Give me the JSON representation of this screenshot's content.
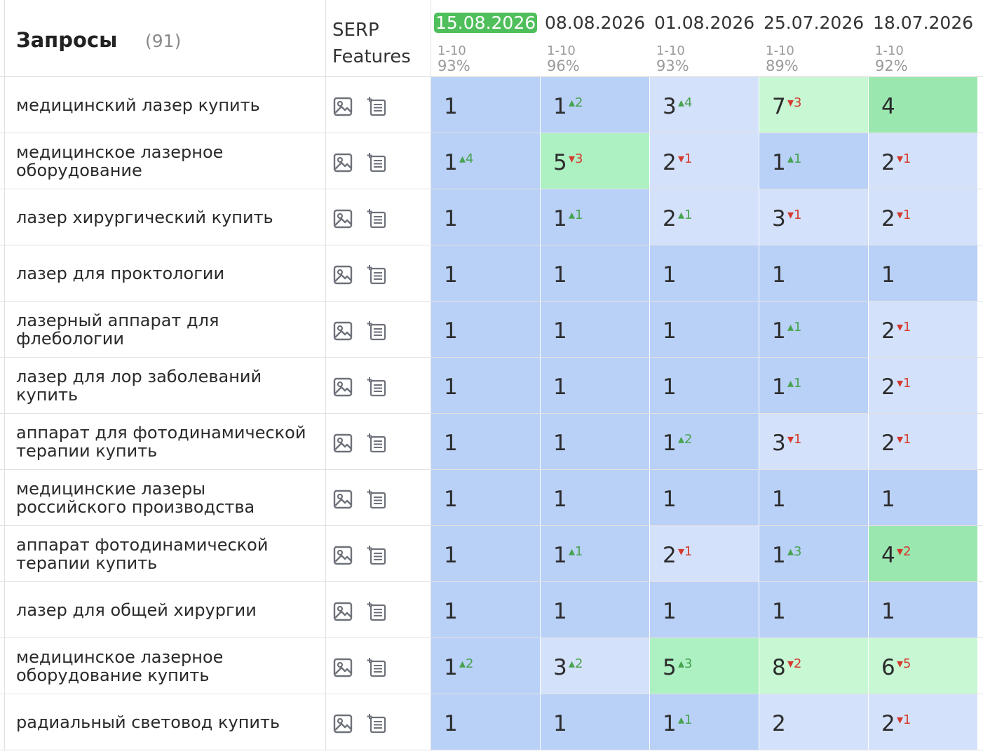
{
  "header": {
    "queries_label": "Запросы",
    "queries_count": "(91)",
    "serp_line1": "SERP",
    "serp_line2": "Features",
    "dates": [
      {
        "date": "15.08.2026",
        "range": "1-10",
        "pct": "93%",
        "active": true
      },
      {
        "date": "08.08.2026",
        "range": "1-10",
        "pct": "96%",
        "active": false
      },
      {
        "date": "01.08.2026",
        "range": "1-10",
        "pct": "93%",
        "active": false
      },
      {
        "date": "25.07.2026",
        "range": "1-10",
        "pct": "89%",
        "active": false
      },
      {
        "date": "18.07.2026",
        "range": "1-10",
        "pct": "92%",
        "active": false
      }
    ]
  },
  "icons": {
    "image": "image-icon",
    "list": "featured-snippet-icon"
  },
  "colors": {
    "blue": "#b9d0f7",
    "light": "#d4e1fb",
    "green": "#adf0c2",
    "light_green": "#c8f7d4",
    "bright_green": "#9ae7b0",
    "active_date": "#4fbf5b",
    "up": "#47a34f",
    "down": "#d33a2c"
  },
  "rows": [
    {
      "query": "медицинский лазер купить",
      "positions": [
        {
          "pos": "1",
          "delta": "",
          "dir": "",
          "bg": "blue"
        },
        {
          "pos": "1",
          "delta": "2",
          "dir": "up",
          "bg": "blue"
        },
        {
          "pos": "3",
          "delta": "4",
          "dir": "up",
          "bg": "light"
        },
        {
          "pos": "7",
          "delta": "3",
          "dir": "down",
          "bg": "lgreen"
        },
        {
          "pos": "4",
          "delta": "",
          "dir": "",
          "bg": "bgreen"
        }
      ]
    },
    {
      "query": "медицинское лазерное оборудование",
      "positions": [
        {
          "pos": "1",
          "delta": "4",
          "dir": "up",
          "bg": "blue"
        },
        {
          "pos": "5",
          "delta": "3",
          "dir": "down",
          "bg": "green"
        },
        {
          "pos": "2",
          "delta": "1",
          "dir": "down",
          "bg": "light"
        },
        {
          "pos": "1",
          "delta": "1",
          "dir": "up",
          "bg": "blue"
        },
        {
          "pos": "2",
          "delta": "1",
          "dir": "down",
          "bg": "light"
        }
      ]
    },
    {
      "query": "лазер хирургический купить",
      "positions": [
        {
          "pos": "1",
          "delta": "",
          "dir": "",
          "bg": "blue"
        },
        {
          "pos": "1",
          "delta": "1",
          "dir": "up",
          "bg": "blue"
        },
        {
          "pos": "2",
          "delta": "1",
          "dir": "up",
          "bg": "light"
        },
        {
          "pos": "3",
          "delta": "1",
          "dir": "down",
          "bg": "light"
        },
        {
          "pos": "2",
          "delta": "1",
          "dir": "down",
          "bg": "light"
        }
      ]
    },
    {
      "query": "лазер для проктологии",
      "positions": [
        {
          "pos": "1",
          "delta": "",
          "dir": "",
          "bg": "blue"
        },
        {
          "pos": "1",
          "delta": "",
          "dir": "",
          "bg": "blue"
        },
        {
          "pos": "1",
          "delta": "",
          "dir": "",
          "bg": "blue"
        },
        {
          "pos": "1",
          "delta": "",
          "dir": "",
          "bg": "blue"
        },
        {
          "pos": "1",
          "delta": "",
          "dir": "",
          "bg": "blue"
        }
      ]
    },
    {
      "query": "лазерный аппарат для флебологии",
      "positions": [
        {
          "pos": "1",
          "delta": "",
          "dir": "",
          "bg": "blue"
        },
        {
          "pos": "1",
          "delta": "",
          "dir": "",
          "bg": "blue"
        },
        {
          "pos": "1",
          "delta": "",
          "dir": "",
          "bg": "blue"
        },
        {
          "pos": "1",
          "delta": "1",
          "dir": "up",
          "bg": "blue"
        },
        {
          "pos": "2",
          "delta": "1",
          "dir": "down",
          "bg": "light"
        }
      ]
    },
    {
      "query": "лазер для лор заболеваний купить",
      "positions": [
        {
          "pos": "1",
          "delta": "",
          "dir": "",
          "bg": "blue"
        },
        {
          "pos": "1",
          "delta": "",
          "dir": "",
          "bg": "blue"
        },
        {
          "pos": "1",
          "delta": "",
          "dir": "",
          "bg": "blue"
        },
        {
          "pos": "1",
          "delta": "1",
          "dir": "up",
          "bg": "blue"
        },
        {
          "pos": "2",
          "delta": "1",
          "dir": "down",
          "bg": "light"
        }
      ]
    },
    {
      "query": "аппарат для фотодинамической терапии купить",
      "positions": [
        {
          "pos": "1",
          "delta": "",
          "dir": "",
          "bg": "blue"
        },
        {
          "pos": "1",
          "delta": "",
          "dir": "",
          "bg": "blue"
        },
        {
          "pos": "1",
          "delta": "2",
          "dir": "up",
          "bg": "blue"
        },
        {
          "pos": "3",
          "delta": "1",
          "dir": "down",
          "bg": "light"
        },
        {
          "pos": "2",
          "delta": "1",
          "dir": "down",
          "bg": "light"
        }
      ]
    },
    {
      "query": "медицинские лазеры российского производства",
      "positions": [
        {
          "pos": "1",
          "delta": "",
          "dir": "",
          "bg": "blue"
        },
        {
          "pos": "1",
          "delta": "",
          "dir": "",
          "bg": "blue"
        },
        {
          "pos": "1",
          "delta": "",
          "dir": "",
          "bg": "blue"
        },
        {
          "pos": "1",
          "delta": "",
          "dir": "",
          "bg": "blue"
        },
        {
          "pos": "1",
          "delta": "",
          "dir": "",
          "bg": "blue"
        }
      ]
    },
    {
      "query": "аппарат фотодинамической терапии купить",
      "positions": [
        {
          "pos": "1",
          "delta": "",
          "dir": "",
          "bg": "blue"
        },
        {
          "pos": "1",
          "delta": "1",
          "dir": "up",
          "bg": "blue"
        },
        {
          "pos": "2",
          "delta": "1",
          "dir": "down",
          "bg": "light"
        },
        {
          "pos": "1",
          "delta": "3",
          "dir": "up",
          "bg": "blue"
        },
        {
          "pos": "4",
          "delta": "2",
          "dir": "down",
          "bg": "bgreen"
        }
      ]
    },
    {
      "query": "лазер для общей хирургии",
      "positions": [
        {
          "pos": "1",
          "delta": "",
          "dir": "",
          "bg": "blue"
        },
        {
          "pos": "1",
          "delta": "",
          "dir": "",
          "bg": "blue"
        },
        {
          "pos": "1",
          "delta": "",
          "dir": "",
          "bg": "blue"
        },
        {
          "pos": "1",
          "delta": "",
          "dir": "",
          "bg": "blue"
        },
        {
          "pos": "1",
          "delta": "",
          "dir": "",
          "bg": "blue"
        }
      ]
    },
    {
      "query": "медицинское лазерное оборудование купить",
      "positions": [
        {
          "pos": "1",
          "delta": "2",
          "dir": "up",
          "bg": "blue"
        },
        {
          "pos": "3",
          "delta": "2",
          "dir": "up",
          "bg": "light"
        },
        {
          "pos": "5",
          "delta": "3",
          "dir": "up",
          "bg": "green"
        },
        {
          "pos": "8",
          "delta": "2",
          "dir": "down",
          "bg": "lgreen"
        },
        {
          "pos": "6",
          "delta": "5",
          "dir": "down",
          "bg": "lgreen"
        }
      ]
    },
    {
      "query": "радиальный световод купить",
      "positions": [
        {
          "pos": "1",
          "delta": "",
          "dir": "",
          "bg": "blue"
        },
        {
          "pos": "1",
          "delta": "",
          "dir": "",
          "bg": "blue"
        },
        {
          "pos": "1",
          "delta": "1",
          "dir": "up",
          "bg": "blue"
        },
        {
          "pos": "2",
          "delta": "",
          "dir": "",
          "bg": "light"
        },
        {
          "pos": "2",
          "delta": "1",
          "dir": "down",
          "bg": "light"
        }
      ]
    }
  ]
}
